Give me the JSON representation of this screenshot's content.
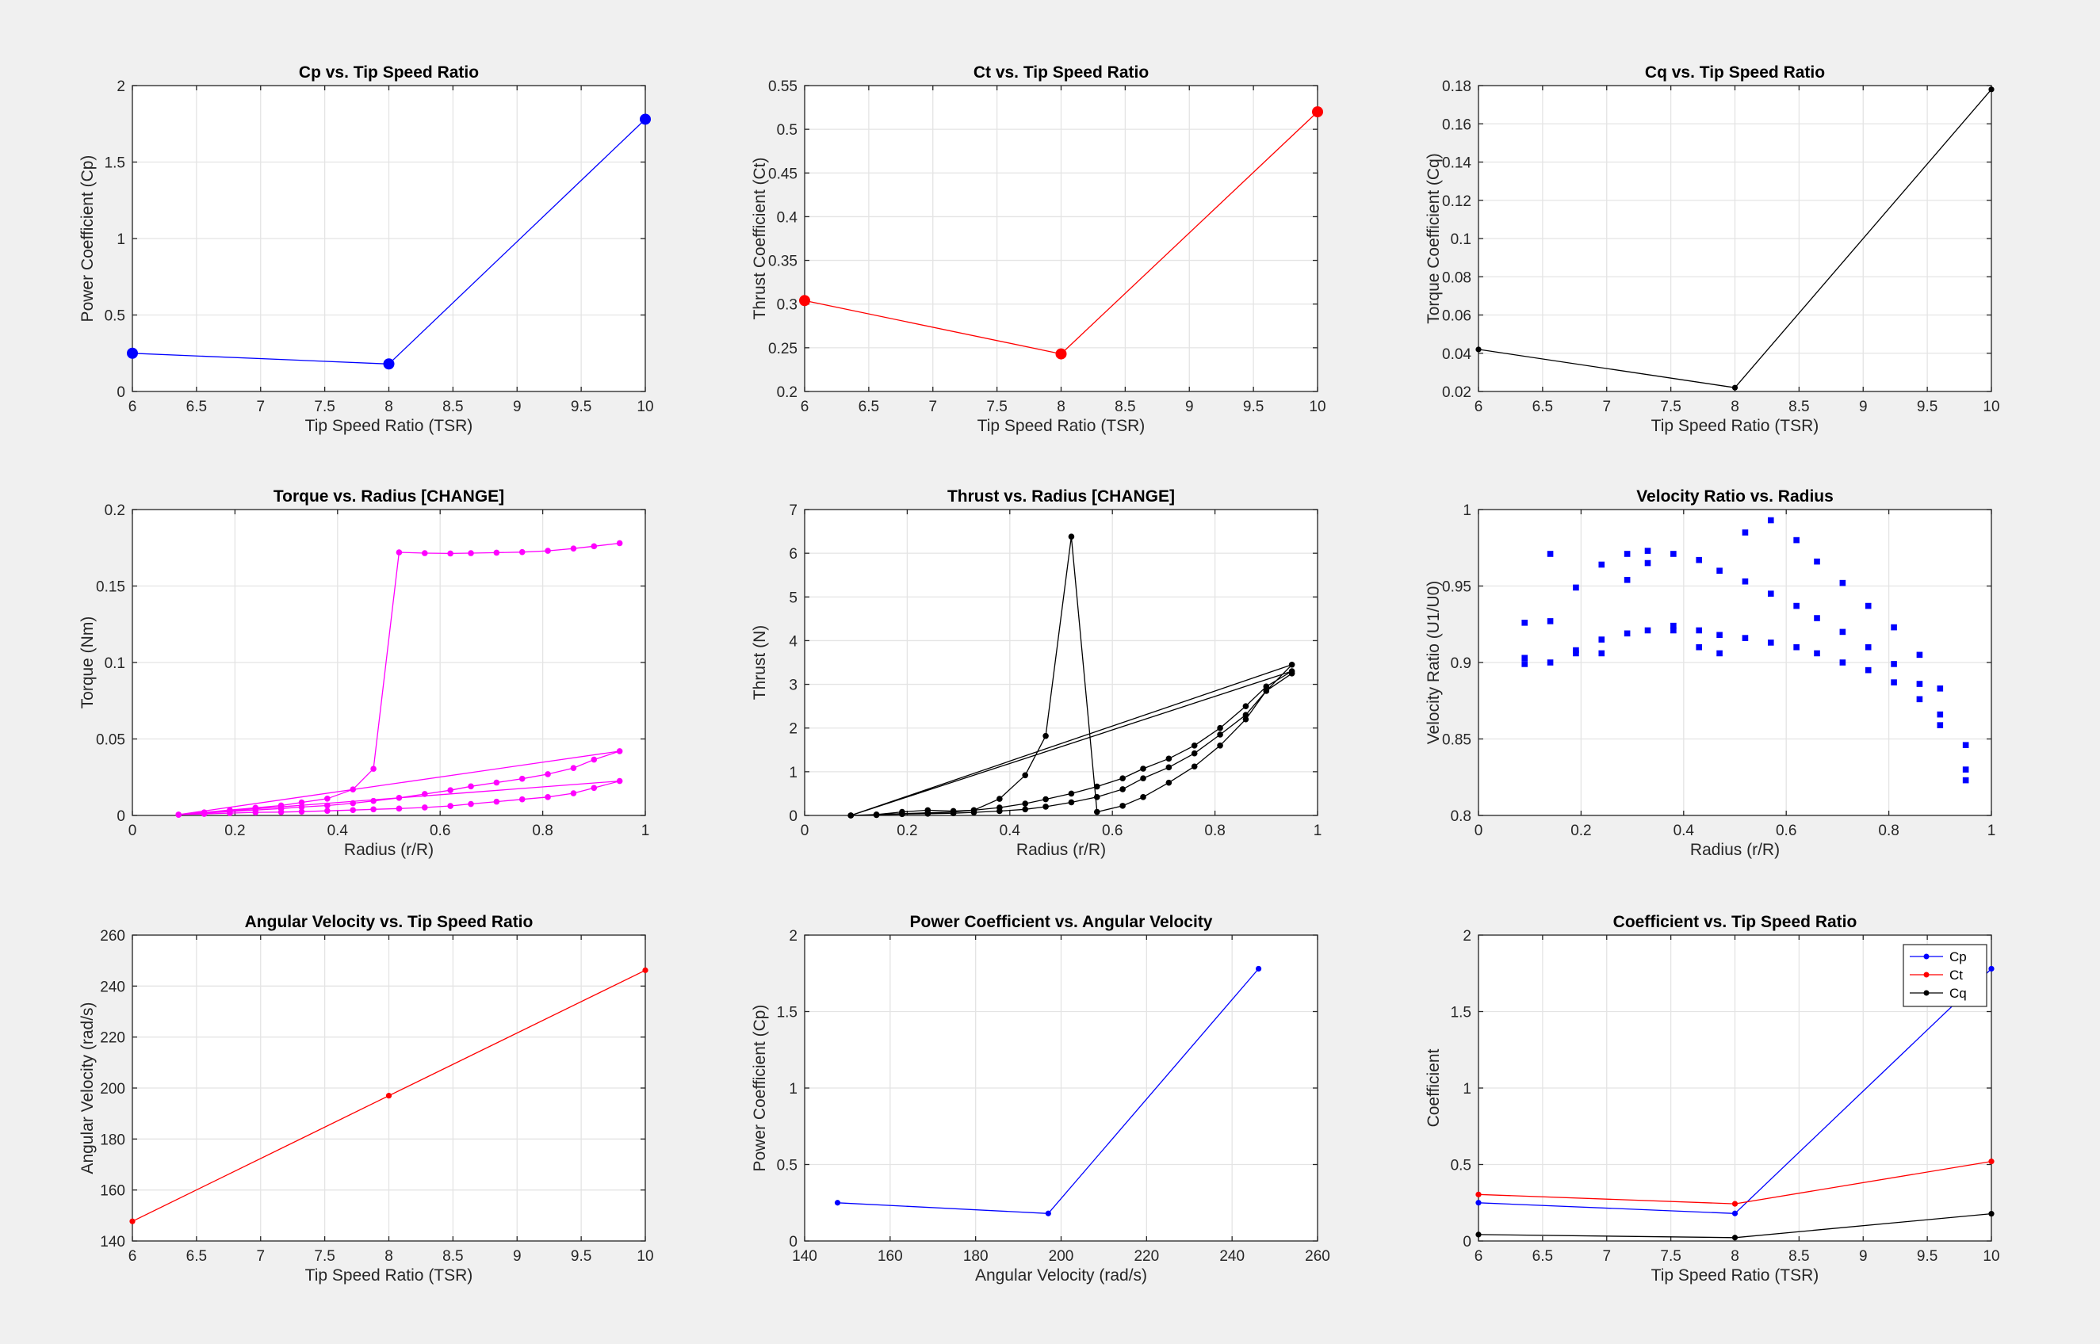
{
  "chart_data": [
    {
      "id": "cp_tsr",
      "type": "line",
      "title": "Cp vs. Tip Speed Ratio",
      "xlabel": "Tip Speed Ratio (TSR)",
      "ylabel": "Power Coefficient (Cp)",
      "xlim": [
        6,
        10
      ],
      "ylim": [
        0,
        2
      ],
      "xticks": [
        6,
        6.5,
        7,
        7.5,
        8,
        8.5,
        9,
        9.5,
        10
      ],
      "yticks": [
        0,
        0.5,
        1,
        1.5,
        2
      ],
      "series": [
        {
          "name": "Cp",
          "color": "#0000ff",
          "marker": "big",
          "x": [
            6,
            8,
            10
          ],
          "y": [
            0.25,
            0.18,
            1.78
          ]
        }
      ]
    },
    {
      "id": "ct_tsr",
      "type": "line",
      "title": "Ct vs. Tip Speed Ratio",
      "xlabel": "Tip Speed Ratio (TSR)",
      "ylabel": "Thrust Coefficient (Ct)",
      "xlim": [
        6,
        10
      ],
      "ylim": [
        0.2,
        0.55
      ],
      "xticks": [
        6,
        6.5,
        7,
        7.5,
        8,
        8.5,
        9,
        9.5,
        10
      ],
      "yticks": [
        0.2,
        0.25,
        0.3,
        0.35,
        0.4,
        0.45,
        0.5,
        0.55
      ],
      "series": [
        {
          "name": "Ct",
          "color": "#ff0000",
          "marker": "big",
          "x": [
            6,
            8,
            10
          ],
          "y": [
            0.304,
            0.243,
            0.52
          ]
        }
      ]
    },
    {
      "id": "cq_tsr",
      "type": "line",
      "title": "Cq vs. Tip Speed Ratio",
      "xlabel": "Tip Speed Ratio (TSR)",
      "ylabel": "Torque Coefficient (Cq)",
      "xlim": [
        6,
        10
      ],
      "ylim": [
        0.02,
        0.18
      ],
      "xticks": [
        6,
        6.5,
        7,
        7.5,
        8,
        8.5,
        9,
        9.5,
        10
      ],
      "yticks": [
        0.02,
        0.04,
        0.06,
        0.08,
        0.1,
        0.12,
        0.14,
        0.16,
        0.18
      ],
      "series": [
        {
          "name": "Cq",
          "color": "#000000",
          "marker": "small",
          "x": [
            6,
            8,
            10
          ],
          "y": [
            0.042,
            0.022,
            0.178
          ]
        }
      ]
    },
    {
      "id": "torque_radius",
      "type": "line",
      "title": "Torque vs. Radius [CHANGE]",
      "xlabel": "Radius (r/R)",
      "ylabel": "Torque (Nm)",
      "xlim": [
        0,
        1
      ],
      "ylim": [
        0,
        0.2
      ],
      "xticks": [
        0,
        0.2,
        0.4,
        0.6,
        0.8,
        1
      ],
      "yticks": [
        0,
        0.05,
        0.1,
        0.15,
        0.2
      ],
      "series": [
        {
          "name": "Torque",
          "color": "#ff00ff",
          "marker": "medium",
          "x": [
            0.09,
            0.14,
            0.19,
            0.24,
            0.29,
            0.33,
            0.38,
            0.43,
            0.47,
            0.52,
            0.57,
            0.62,
            0.66,
            0.71,
            0.76,
            0.81,
            0.86,
            0.9,
            0.95,
            0.09,
            0.14,
            0.19,
            0.24,
            0.29,
            0.33,
            0.38,
            0.43,
            0.47,
            0.52,
            0.57,
            0.62,
            0.66,
            0.71,
            0.76,
            0.81,
            0.86,
            0.9,
            0.95,
            0.09,
            0.14,
            0.19,
            0.24,
            0.29,
            0.33,
            0.38,
            0.43,
            0.47,
            0.52,
            0.57,
            0.62,
            0.66,
            0.71,
            0.76,
            0.81,
            0.86,
            0.9,
            0.95
          ],
          "y": [
            0.0005,
            0.001,
            0.0015,
            0.002,
            0.0022,
            0.0025,
            0.003,
            0.0035,
            0.004,
            0.0045,
            0.0052,
            0.0062,
            0.0075,
            0.009,
            0.0105,
            0.012,
            0.0145,
            0.018,
            0.0225,
            0.0005,
            0.0015,
            0.0025,
            0.0035,
            0.0045,
            0.0055,
            0.0065,
            0.008,
            0.0095,
            0.0115,
            0.014,
            0.0165,
            0.019,
            0.0215,
            0.024,
            0.027,
            0.031,
            0.0365,
            0.042,
            0.0005,
            0.002,
            0.0035,
            0.005,
            0.0065,
            0.0085,
            0.011,
            0.017,
            0.0305,
            0.172,
            0.1715,
            0.1713,
            0.1715,
            0.1718,
            0.1722,
            0.173,
            0.1745,
            0.176,
            0.178
          ]
        }
      ]
    },
    {
      "id": "thrust_radius",
      "type": "line",
      "title": "Thrust vs. Radius [CHANGE]",
      "xlabel": "Radius (r/R)",
      "ylabel": "Thrust (N)",
      "xlim": [
        0,
        1
      ],
      "ylim": [
        0,
        7
      ],
      "xticks": [
        0,
        0.2,
        0.4,
        0.6,
        0.8,
        1
      ],
      "yticks": [
        0,
        1,
        2,
        3,
        4,
        5,
        6,
        7
      ],
      "series": [
        {
          "name": "Thrust",
          "color": "#000000",
          "marker": "medium",
          "x": [
            0.09,
            0.14,
            0.19,
            0.24,
            0.29,
            0.33,
            0.38,
            0.43,
            0.47,
            0.52,
            0.57,
            0.62,
            0.66,
            0.71,
            0.76,
            0.81,
            0.86,
            0.9,
            0.95,
            0.09,
            0.14,
            0.19,
            0.24,
            0.29,
            0.33,
            0.38,
            0.43,
            0.47,
            0.52,
            0.57,
            0.62,
            0.66,
            0.71,
            0.76,
            0.81,
            0.86,
            0.9,
            0.95,
            0.09,
            0.14,
            0.19,
            0.24,
            0.29,
            0.33,
            0.38,
            0.43,
            0.47,
            0.52,
            0.57,
            0.62,
            0.66,
            0.71,
            0.76,
            0.81,
            0.86,
            0.9,
            0.95
          ],
          "y": [
            0.0,
            0.01,
            0.03,
            0.04,
            0.05,
            0.07,
            0.1,
            0.14,
            0.2,
            0.3,
            0.42,
            0.6,
            0.85,
            1.1,
            1.42,
            1.85,
            2.3,
            2.85,
            3.45,
            0.0,
            0.02,
            0.04,
            0.06,
            0.08,
            0.12,
            0.18,
            0.27,
            0.37,
            0.5,
            0.66,
            0.85,
            1.07,
            1.3,
            1.6,
            2.0,
            2.5,
            2.95,
            3.3,
            0.0,
            0.02,
            0.08,
            0.12,
            0.1,
            0.12,
            0.38,
            0.92,
            1.82,
            6.38,
            0.08,
            0.22,
            0.42,
            0.75,
            1.12,
            1.6,
            2.2,
            2.85,
            3.25
          ]
        }
      ]
    },
    {
      "id": "velocity_ratio",
      "type": "scatter",
      "title": "Velocity Ratio vs. Radius",
      "xlabel": "Radius (r/R)",
      "ylabel": "Velocity Ratio (U1/U0)",
      "xlim": [
        0,
        1
      ],
      "ylim": [
        0.8,
        1
      ],
      "xticks": [
        0,
        0.2,
        0.4,
        0.6,
        0.8,
        1
      ],
      "yticks": [
        0.8,
        0.85,
        0.9,
        0.95,
        1
      ],
      "series": [
        {
          "name": "U1/U0",
          "color": "#0000ff",
          "marker": "square",
          "x": [
            0.09,
            0.09,
            0.09,
            0.14,
            0.14,
            0.14,
            0.19,
            0.19,
            0.19,
            0.24,
            0.24,
            0.24,
            0.29,
            0.29,
            0.29,
            0.33,
            0.33,
            0.33,
            0.38,
            0.38,
            0.38,
            0.43,
            0.43,
            0.43,
            0.47,
            0.47,
            0.47,
            0.52,
            0.52,
            0.52,
            0.57,
            0.57,
            0.57,
            0.62,
            0.62,
            0.62,
            0.66,
            0.66,
            0.66,
            0.71,
            0.71,
            0.71,
            0.76,
            0.76,
            0.76,
            0.81,
            0.81,
            0.81,
            0.86,
            0.86,
            0.86,
            0.9,
            0.9,
            0.9,
            0.95,
            0.95,
            0.95
          ],
          "y": [
            0.926,
            0.903,
            0.899,
            0.971,
            0.927,
            0.9,
            0.949,
            0.908,
            0.906,
            0.964,
            0.915,
            0.906,
            0.971,
            0.954,
            0.919,
            0.973,
            0.965,
            0.921,
            0.971,
            0.924,
            0.921,
            0.967,
            0.921,
            0.91,
            0.96,
            0.918,
            0.906,
            0.985,
            0.953,
            0.916,
            0.993,
            0.945,
            0.913,
            0.98,
            0.937,
            0.91,
            0.966,
            0.929,
            0.906,
            0.952,
            0.92,
            0.9,
            0.937,
            0.91,
            0.895,
            0.923,
            0.899,
            0.887,
            0.905,
            0.886,
            0.876,
            0.883,
            0.866,
            0.859,
            0.846,
            0.83,
            0.823
          ]
        }
      ]
    },
    {
      "id": "omega_tsr",
      "type": "line",
      "title": "Angular Velocity vs. Tip Speed Ratio",
      "xlabel": "Tip Speed Ratio (TSR)",
      "ylabel": "Angular Velocity (rad/s)",
      "xlim": [
        6,
        10
      ],
      "ylim": [
        140,
        260
      ],
      "xticks": [
        6,
        6.5,
        7,
        7.5,
        8,
        8.5,
        9,
        9.5,
        10
      ],
      "yticks": [
        140,
        160,
        180,
        200,
        220,
        240,
        260
      ],
      "series": [
        {
          "name": "Angular Velocity",
          "color": "#ff0000",
          "marker": "small",
          "x": [
            6,
            8,
            10
          ],
          "y": [
            147.7,
            197,
            246.2
          ]
        }
      ]
    },
    {
      "id": "cp_omega",
      "type": "line",
      "title": "Power Coefficient vs. Angular Velocity",
      "xlabel": "Angular Velocity (rad/s)",
      "ylabel": "Power Coefficient (Cp)",
      "xlim": [
        140,
        260
      ],
      "ylim": [
        0,
        2
      ],
      "xticks": [
        140,
        160,
        180,
        200,
        220,
        240,
        260
      ],
      "yticks": [
        0,
        0.5,
        1,
        1.5,
        2
      ],
      "series": [
        {
          "name": "Cp",
          "color": "#0000ff",
          "marker": "small",
          "x": [
            147.7,
            197,
            246.2
          ],
          "y": [
            0.25,
            0.18,
            1.78
          ]
        }
      ]
    },
    {
      "id": "coeff_tsr",
      "type": "line",
      "title": "Coefficient vs. Tip Speed Ratio",
      "xlabel": "Tip Speed Ratio (TSR)",
      "ylabel": "Coefficient",
      "xlim": [
        6,
        10
      ],
      "ylim": [
        0,
        2
      ],
      "xticks": [
        6,
        6.5,
        7,
        7.5,
        8,
        8.5,
        9,
        9.5,
        10
      ],
      "yticks": [
        0,
        0.5,
        1,
        1.5,
        2
      ],
      "legend": "top-right",
      "series": [
        {
          "name": "Cp",
          "color": "#0000ff",
          "marker": "small",
          "x": [
            6,
            8,
            10
          ],
          "y": [
            0.25,
            0.18,
            1.78
          ]
        },
        {
          "name": "Ct",
          "color": "#ff0000",
          "marker": "small",
          "x": [
            6,
            8,
            10
          ],
          "y": [
            0.304,
            0.243,
            0.52
          ]
        },
        {
          "name": "Cq",
          "color": "#000000",
          "marker": "small",
          "x": [
            6,
            8,
            10
          ],
          "y": [
            0.042,
            0.022,
            0.178
          ]
        }
      ]
    }
  ]
}
